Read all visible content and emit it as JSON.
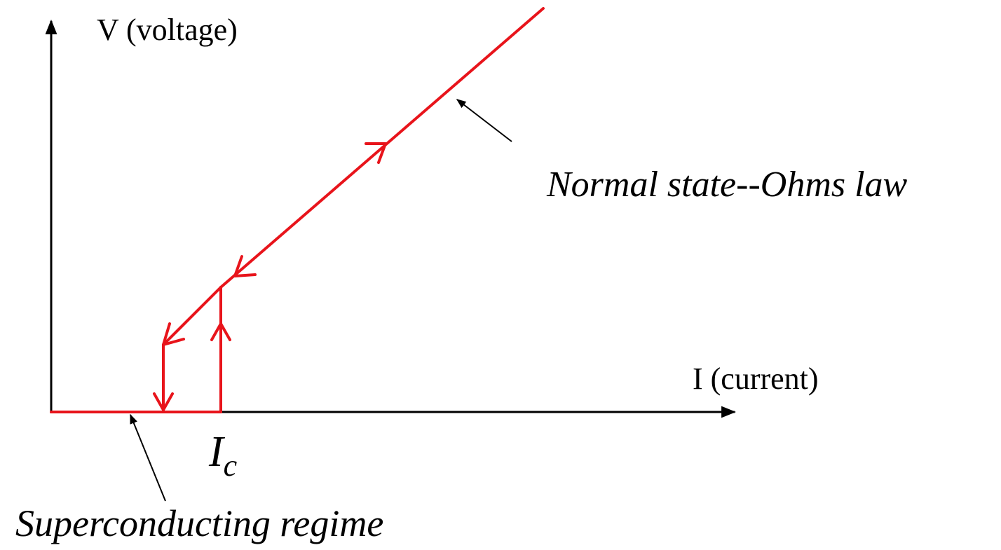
{
  "y_axis_label": "V (voltage)",
  "x_axis_label": "I (current)",
  "annotations": {
    "normal_state": "Normal state--Ohms law",
    "superconducting": "Superconducting regime"
  },
  "critical_current": {
    "symbol": "I",
    "subscript": "c"
  }
}
